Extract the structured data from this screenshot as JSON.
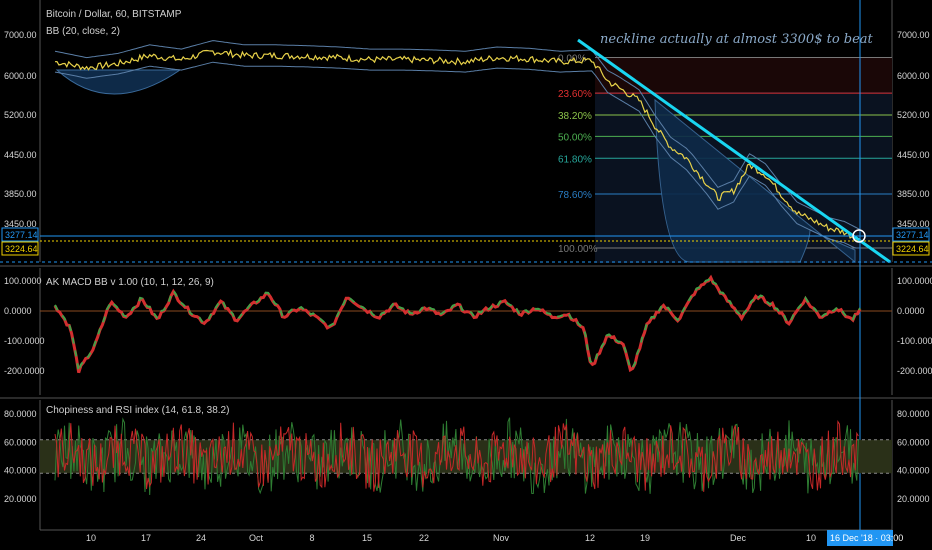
{
  "chart_data": {
    "type": "line",
    "title": "Bitcoin / Dollar, 60, BITSTAMP",
    "overlay_label": "BB (20, close, 2)",
    "annotation": "neckline actually at almost 3300$ to beat",
    "x_ticks": [
      "10",
      "17",
      "24",
      "Oct",
      "8",
      "15",
      "22",
      "Nov",
      "12",
      "19",
      "Dec",
      "10"
    ],
    "cursor_label": "16 Dec '18 · 03:00",
    "price_panel": {
      "ticks": [
        "7000.00",
        "6000.00",
        "5200.00",
        "4450.00",
        "3850.00",
        "3450.00"
      ],
      "tick_values": [
        7000,
        6000,
        5200,
        4450,
        3850,
        3450
      ],
      "price_tags": [
        {
          "text": "3277.14",
          "color": "#2196f3"
        },
        {
          "text": "3224.64",
          "color": "#f0d000"
        }
      ],
      "price_tag_values": [
        3277.14,
        3224.64
      ],
      "fib_levels": [
        {
          "label": "0.00%",
          "value": 6450,
          "color": "#787878"
        },
        {
          "label": "23.60%",
          "value": 5650,
          "color": "#e03030"
        },
        {
          "label": "38.20%",
          "value": 5200,
          "color": "#8bc34a"
        },
        {
          "label": "50.00%",
          "value": 4800,
          "color": "#4caf50"
        },
        {
          "label": "61.80%",
          "value": 4400,
          "color": "#26a69a"
        },
        {
          "label": "78.60%",
          "value": 3850,
          "color": "#2a7dc4"
        },
        {
          "label": "100.00%",
          "value": 3150,
          "color": "#787878"
        }
      ],
      "price_points": [
        [
          0,
          6350
        ],
        [
          4,
          6200
        ],
        [
          8,
          6300
        ],
        [
          12,
          6500
        ],
        [
          16,
          6400
        ],
        [
          20,
          6600
        ],
        [
          24,
          6500
        ],
        [
          28,
          6500
        ],
        [
          32,
          6480
        ],
        [
          36,
          6450
        ],
        [
          40,
          6400
        ],
        [
          44,
          6400
        ],
        [
          48,
          6380
        ],
        [
          52,
          6350
        ],
        [
          56,
          6450
        ],
        [
          60,
          6420
        ],
        [
          64,
          6350
        ],
        [
          68,
          6380
        ],
        [
          70,
          5900
        ],
        [
          72,
          5700
        ],
        [
          74,
          5500
        ],
        [
          76,
          5000
        ],
        [
          78,
          4600
        ],
        [
          80,
          4400
        ],
        [
          82,
          4100
        ],
        [
          84,
          3800
        ],
        [
          86,
          3900
        ],
        [
          88,
          4300
        ],
        [
          90,
          4150
        ],
        [
          92,
          3850
        ],
        [
          94,
          3600
        ],
        [
          96,
          3500
        ],
        [
          98,
          3400
        ],
        [
          100,
          3350
        ],
        [
          102,
          3250
        ]
      ]
    },
    "macd_panel": {
      "label": "AK MACD BB v 1.00 (10, 1, 12, 26, 9)",
      "ticks": [
        "100.0000",
        "0.0000",
        "-100.0000",
        "-200.0000"
      ],
      "tick_values": [
        100,
        0,
        -100,
        -200
      ],
      "points": [
        [
          0,
          20
        ],
        [
          2,
          -60
        ],
        [
          3,
          -200
        ],
        [
          5,
          -120
        ],
        [
          7,
          30
        ],
        [
          9,
          -20
        ],
        [
          11,
          40
        ],
        [
          13,
          -30
        ],
        [
          15,
          60
        ],
        [
          17,
          0
        ],
        [
          19,
          -40
        ],
        [
          21,
          30
        ],
        [
          23,
          -30
        ],
        [
          25,
          20
        ],
        [
          27,
          60
        ],
        [
          29,
          -20
        ],
        [
          31,
          10
        ],
        [
          33,
          -20
        ],
        [
          35,
          -60
        ],
        [
          37,
          50
        ],
        [
          39,
          10
        ],
        [
          41,
          -20
        ],
        [
          43,
          20
        ],
        [
          45,
          -10
        ],
        [
          47,
          10
        ],
        [
          49,
          -15
        ],
        [
          51,
          20
        ],
        [
          53,
          -20
        ],
        [
          55,
          10
        ],
        [
          57,
          30
        ],
        [
          59,
          -10
        ],
        [
          61,
          10
        ],
        [
          63,
          -20
        ],
        [
          65,
          -10
        ],
        [
          67,
          -60
        ],
        [
          68,
          -190
        ],
        [
          70,
          -80
        ],
        [
          72,
          -110
        ],
        [
          73,
          -210
        ],
        [
          75,
          -50
        ],
        [
          77,
          20
        ],
        [
          79,
          -30
        ],
        [
          81,
          60
        ],
        [
          83,
          110
        ],
        [
          85,
          40
        ],
        [
          87,
          -20
        ],
        [
          89,
          50
        ],
        [
          91,
          20
        ],
        [
          93,
          -40
        ],
        [
          95,
          40
        ],
        [
          97,
          -20
        ],
        [
          99,
          10
        ],
        [
          101,
          -30
        ],
        [
          102,
          0
        ]
      ]
    },
    "rsi_panel": {
      "label": "Chopiness and RSI index (14, 61.8, 38.2)",
      "ticks": [
        "80.0000",
        "60.0000",
        "40.0000",
        "20.0000"
      ],
      "tick_values": [
        80,
        60,
        40,
        20
      ],
      "band": [
        38.2,
        61.8
      ]
    }
  }
}
